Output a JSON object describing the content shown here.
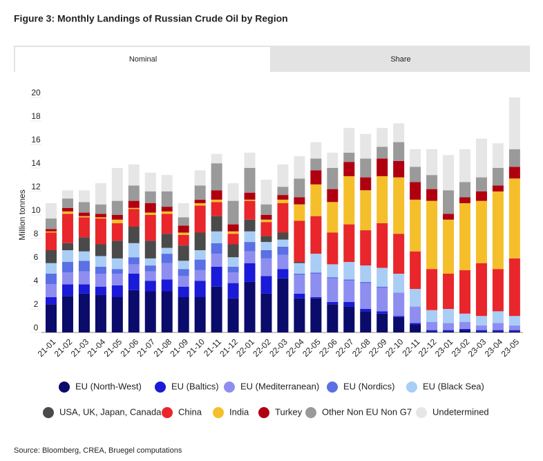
{
  "tabs": [
    "Nominal",
    "Share"
  ],
  "chart_data": {
    "type": "stacked_bar",
    "title": "Figure 3: Monthly Landings of Russian Crude Oil by Region",
    "y_label": "Million tonnes",
    "source": "Source: Bloomberg, CREA, Bruegel computations",
    "categories": [
      "21-01",
      "21-02",
      "21-03",
      "21-04",
      "21-05",
      "21-06",
      "21-07",
      "21-08",
      "21-09",
      "21-10",
      "21-11",
      "21-12",
      "22-01",
      "22-02",
      "22-03",
      "22-04",
      "22-05",
      "22-06",
      "22-07",
      "22-08",
      "22-09",
      "22-10",
      "22-11",
      "22-12",
      "23-01",
      "23-02",
      "23-03",
      "23-04",
      "23-05"
    ],
    "ylim": [
      0,
      20
    ],
    "yticks": [
      0,
      2,
      4,
      6,
      8,
      10,
      12,
      14,
      16,
      18,
      20
    ],
    "series": [
      {
        "name": "EU (North-West)",
        "color": "#0b0b6b",
        "values": [
          2.4,
          3.1,
          3.3,
          3.2,
          3.0,
          3.6,
          3.5,
          3.5,
          3.0,
          3.0,
          3.9,
          2.9,
          4.3,
          3.3,
          4.6,
          2.9,
          2.9,
          2.4,
          2.2,
          1.8,
          1.6,
          1.3,
          0.7,
          0.1,
          0.1,
          0.2,
          0.1,
          0.1,
          0.1
        ]
      },
      {
        "name": "EU (Baltics)",
        "color": "#1a1ad8",
        "values": [
          0.6,
          1.0,
          0.8,
          0.7,
          1.0,
          1.4,
          0.9,
          1.0,
          0.9,
          1.4,
          1.7,
          1.3,
          1.6,
          1.5,
          0.8,
          0.4,
          0.1,
          0.2,
          0.4,
          0.2,
          0.2,
          0.1,
          0.1,
          0.1,
          0.1,
          0.1,
          0.1,
          0.1,
          0.1
        ]
      },
      {
        "name": "EU (Mediterranean)",
        "color": "#8e8ef0",
        "values": [
          1.1,
          1.0,
          1.1,
          1.1,
          1.0,
          0.8,
          0.8,
          1.4,
          0.9,
          0.9,
          1.1,
          0.9,
          1.0,
          1.5,
          1.2,
          1.6,
          2.0,
          2.0,
          1.8,
          2.2,
          2.0,
          2.0,
          1.4,
          0.7,
          0.6,
          0.6,
          0.4,
          0.6,
          0.4
        ]
      },
      {
        "name": "EU (Nordics)",
        "color": "#5a70e4",
        "values": [
          0.9,
          0.9,
          0.9,
          0.6,
          0.4,
          0.6,
          0.5,
          0.8,
          0.6,
          0.9,
          0.9,
          0.5,
          0.8,
          0.7,
          0.7,
          0.1,
          0.1,
          0.1,
          0.1,
          0.1,
          0.1,
          0,
          0,
          0,
          0,
          0,
          0,
          0,
          0
        ]
      },
      {
        "name": "EU (Black Sea)",
        "color": "#a9cdf5",
        "values": [
          0.9,
          1.0,
          0.8,
          0.9,
          0.9,
          1.2,
          0.6,
          0.5,
          0.7,
          0.8,
          1.0,
          0.8,
          0.9,
          0.7,
          0.6,
          0.9,
          1.6,
          1.1,
          1.5,
          1.4,
          1.6,
          1.6,
          1.5,
          1.0,
          1.2,
          0.7,
          0.8,
          1.0,
          0.8
        ]
      },
      {
        "name": "USA, UK, Japan, Canada",
        "color": "#4a4a4a",
        "values": [
          1.1,
          0.6,
          1.2,
          1.0,
          1.5,
          1.4,
          1.5,
          1.2,
          1.3,
          1.5,
          1.3,
          1.1,
          1.0,
          0.5,
          0.6,
          0.1,
          0,
          0,
          0,
          0,
          0,
          0,
          0,
          0,
          0,
          0,
          0,
          0,
          0
        ]
      },
      {
        "name": "China",
        "color": "#e8262b",
        "values": [
          1.5,
          2.5,
          1.7,
          2.2,
          1.5,
          1.5,
          2.2,
          1.7,
          0.9,
          2.3,
          1.2,
          0.9,
          1.6,
          1.2,
          2.5,
          3.5,
          3.2,
          2.7,
          3.2,
          3.0,
          3.8,
          3.4,
          3.2,
          3.5,
          3.0,
          3.7,
          4.5,
          3.6,
          4.9
        ]
      },
      {
        "name": "India",
        "color": "#f5bf2b",
        "values": [
          0.1,
          0.2,
          0.1,
          0.1,
          0.3,
          0.1,
          0.2,
          0.2,
          0.2,
          0.2,
          0.2,
          0.2,
          0.1,
          0.2,
          0.3,
          1.4,
          2.7,
          2.6,
          4.1,
          3.4,
          4.0,
          4.8,
          4.4,
          5.8,
          4.6,
          5.7,
          5.3,
          6.6,
          6.8
        ]
      },
      {
        "name": "Turkey",
        "color": "#b00010",
        "values": [
          0.2,
          0.3,
          0.3,
          0.3,
          0.4,
          0.6,
          0.8,
          0.4,
          0.6,
          0.3,
          0.8,
          0.6,
          0.6,
          0.4,
          0.4,
          0.6,
          1.2,
          1.1,
          1.2,
          1.1,
          1.5,
          1.4,
          1.5,
          1.0,
          0.5,
          0.5,
          0.8,
          0.5,
          1.0
        ]
      },
      {
        "name": "Other Non EU Non G7",
        "color": "#9a9a9a",
        "values": [
          0.9,
          0.8,
          0.9,
          0.8,
          1.2,
          1.3,
          1.0,
          1.3,
          0.7,
          1.2,
          2.3,
          2.0,
          2.1,
          0.9,
          0.7,
          1.6,
          1.0,
          1.8,
          0.8,
          1.6,
          1.0,
          1.6,
          1.3,
          1.2,
          2.0,
          1.3,
          1.2,
          1.5,
          1.5
        ]
      },
      {
        "name": "Undetermined",
        "color": "#e6e6e6",
        "values": [
          1.3,
          0.7,
          1.0,
          1.8,
          2.8,
          1.8,
          1.6,
          1.4,
          1.2,
          1.3,
          0.8,
          1.5,
          1.3,
          2.1,
          1.9,
          1.9,
          1.4,
          1.3,
          2.1,
          2.1,
          1.6,
          1.6,
          1.5,
          2.2,
          3.0,
          2.8,
          3.3,
          2.1,
          4.4
        ]
      }
    ]
  }
}
